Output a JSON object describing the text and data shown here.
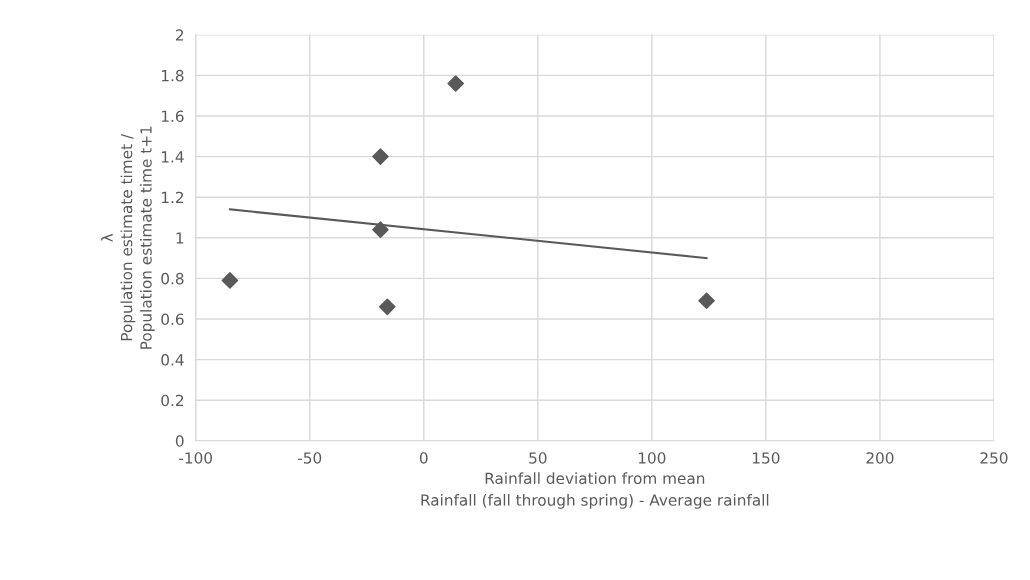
{
  "chart_data": {
    "type": "scatter",
    "xlabel": "Rainfall deviation from mean\nRainfall (fall through spring) - Average rainfall",
    "ylabel": "λ\nPopulation estimate timet /\nPopulation estimate time t+1",
    "series": [
      {
        "color": "#595959",
        "marker": "diamond",
        "x": [
          -85,
          -19,
          -19,
          -16,
          14,
          124
        ],
        "values": [
          0.79,
          1.4,
          1.04,
          0.66,
          1.76,
          0.69
        ]
      },
      {
        "type": "line",
        "color": "#595959",
        "line_style": "solid",
        "x": [
          -85,
          124
        ],
        "values": [
          1.14,
          0.9
        ]
      }
    ],
    "xlim": [
      -100,
      250
    ],
    "xticks": [
      {
        "value": -100,
        "label": "-100"
      },
      {
        "value": -50,
        "label": "-50"
      },
      0,
      50,
      100,
      150,
      200,
      250
    ],
    "ylim": [
      0,
      2
    ],
    "yticks": [
      0,
      0.2,
      0.4,
      0.6,
      0.8,
      1,
      1.2,
      1.4,
      1.6,
      1.8,
      2
    ],
    "grid": true,
    "legend": false
  }
}
